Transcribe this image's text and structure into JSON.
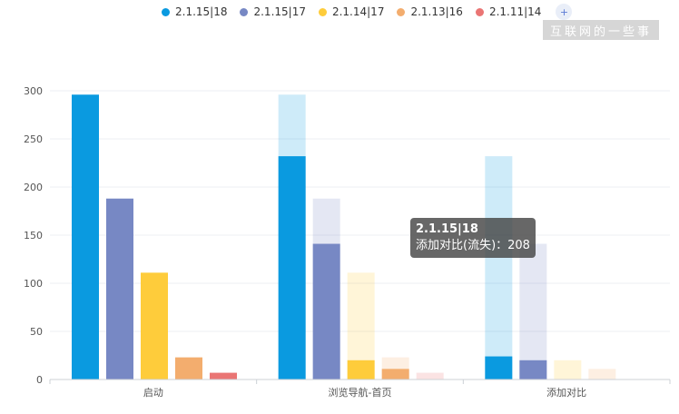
{
  "chart_data": {
    "type": "bar",
    "categories": [
      "启动",
      "浏览导航-首页",
      "添加对比"
    ],
    "series": [
      {
        "name": "2.1.15|18",
        "color": "#0a9ae0",
        "values": [
          296,
          296,
          232
        ],
        "retained": [
          296,
          232,
          24
        ]
      },
      {
        "name": "2.1.15|17",
        "color": "#7788c4",
        "values": [
          188,
          188,
          141
        ],
        "retained": [
          188,
          141,
          20
        ]
      },
      {
        "name": "2.1.14|17",
        "color": "#fecc3b",
        "values": [
          111,
          111,
          20
        ],
        "retained": [
          111,
          20,
          0
        ]
      },
      {
        "name": "2.1.13|16",
        "color": "#f3ad6e",
        "values": [
          23,
          23,
          11
        ],
        "retained": [
          23,
          11,
          0
        ]
      },
      {
        "name": "2.1.11|14",
        "color": "#ea7574",
        "values": [
          7,
          7,
          0
        ],
        "retained": [
          7,
          0,
          0
        ]
      }
    ],
    "yticks": [
      0,
      50,
      100,
      150,
      200,
      250,
      300
    ],
    "ylim": [
      0,
      300
    ],
    "grid": true,
    "legend_position": "top-center"
  },
  "legend": {
    "more_symbol": "+"
  },
  "watermark": "互联网的一些事",
  "tooltip": {
    "title": "2.1.15|18",
    "line": "添加对比(流失)：208"
  }
}
